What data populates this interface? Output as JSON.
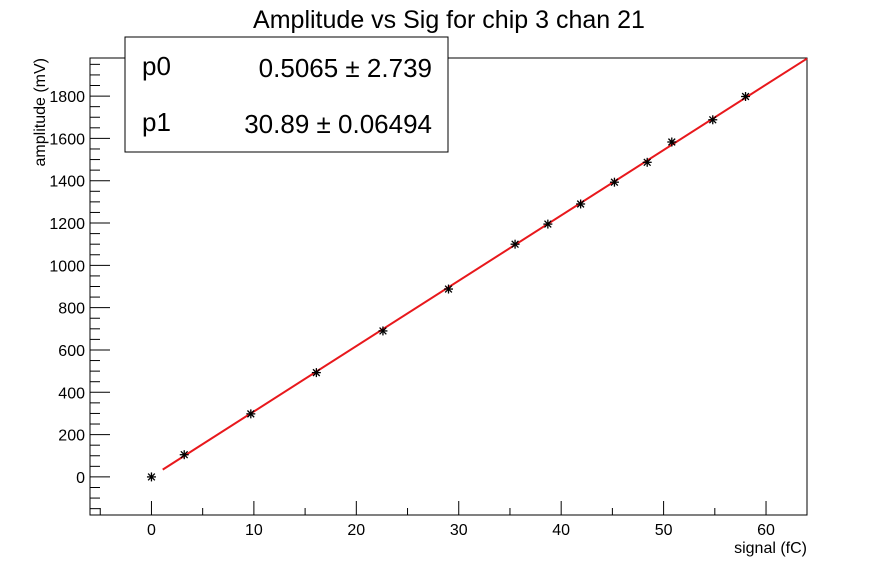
{
  "chart_data": {
    "type": "scatter",
    "title": "Amplitude vs Sig for chip 3 chan 21",
    "xlabel": "signal (fC)",
    "ylabel": "amplitude (mV)",
    "xlim": [
      -6,
      64
    ],
    "ylim": [
      -180,
      1980
    ],
    "x_ticks": [
      0,
      10,
      20,
      30,
      40,
      50,
      60
    ],
    "y_ticks": [
      0,
      200,
      400,
      600,
      800,
      1000,
      1200,
      1400,
      1600,
      1800
    ],
    "grid": false,
    "series": [
      {
        "marker": "asterisk",
        "color": "#000000",
        "points": [
          {
            "x": 0.0,
            "y": 0
          },
          {
            "x": 3.2,
            "y": 105
          },
          {
            "x": 9.7,
            "y": 298
          },
          {
            "x": 16.1,
            "y": 493
          },
          {
            "x": 22.6,
            "y": 690
          },
          {
            "x": 29.0,
            "y": 888
          },
          {
            "x": 35.5,
            "y": 1100
          },
          {
            "x": 38.7,
            "y": 1195
          },
          {
            "x": 41.9,
            "y": 1290
          },
          {
            "x": 45.2,
            "y": 1393
          },
          {
            "x": 48.4,
            "y": 1487
          },
          {
            "x": 50.8,
            "y": 1583
          },
          {
            "x": 54.8,
            "y": 1688
          },
          {
            "x": 58.0,
            "y": 1798
          }
        ]
      }
    ],
    "fit": {
      "type": "linear",
      "color": "#e8181c",
      "x_range": [
        1.1,
        64
      ],
      "p0": 0.5065,
      "p1": 30.89
    },
    "stats_box": {
      "position": "top-left",
      "rows": [
        {
          "name": "p0",
          "value": "0.5065",
          "error": "2.739"
        },
        {
          "name": "p1",
          "value": "30.89",
          "error": "0.06494"
        }
      ]
    }
  }
}
